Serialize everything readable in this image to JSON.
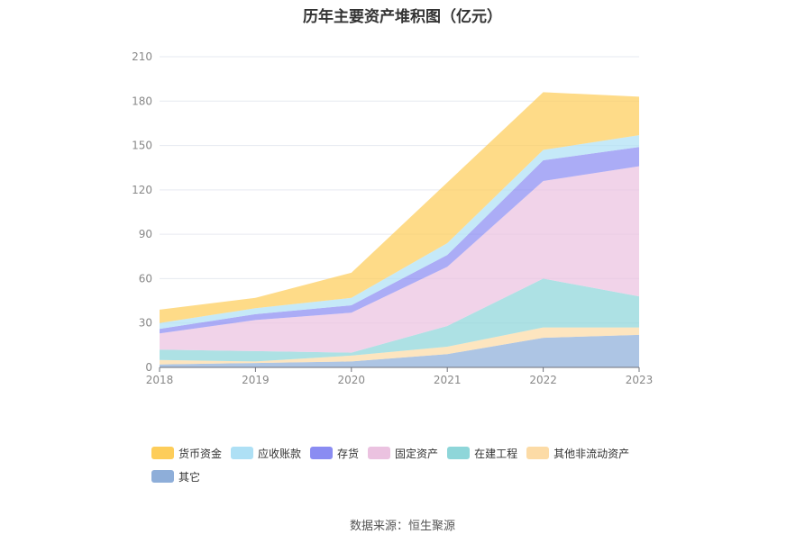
{
  "source": "数据来源：恒生聚源",
  "chart_data": {
    "type": "area",
    "stacked": true,
    "title": "历年主要资产堆积图（亿元）",
    "xlabel": "",
    "ylabel": "",
    "x": [
      "2018",
      "2019",
      "2020",
      "2021",
      "2022",
      "2023"
    ],
    "ylim": [
      0,
      210
    ],
    "yticks": [
      "0",
      "30",
      "60",
      "90",
      "120",
      "150",
      "180",
      "210"
    ],
    "grid": true,
    "legend_position": "bottom",
    "series": [
      {
        "name": "其它",
        "color": "#8eaed9",
        "values": [
          2,
          3,
          4,
          9,
          20,
          22
        ]
      },
      {
        "name": "其他非流动资产",
        "color": "#fcdba6",
        "values": [
          3,
          1,
          4,
          5,
          7,
          5
        ]
      },
      {
        "name": "在建工程",
        "color": "#8ed6d9",
        "values": [
          7,
          7,
          2,
          14,
          33,
          21
        ]
      },
      {
        "name": "固定资产",
        "color": "#ebc2e0",
        "values": [
          11,
          21,
          27,
          40,
          66,
          88
        ]
      },
      {
        "name": "存货",
        "color": "#8a8cf2",
        "values": [
          3,
          4,
          5,
          8,
          14,
          13
        ]
      },
      {
        "name": "应收账款",
        "color": "#aee0f5",
        "values": [
          4,
          4,
          5,
          8,
          7,
          8
        ]
      },
      {
        "name": "货币资金",
        "color": "#fdcd5a",
        "values": [
          9,
          7,
          17,
          41,
          39,
          26
        ]
      }
    ],
    "legend_order": [
      "货币资金",
      "应收账款",
      "存货",
      "固定资产",
      "在建工程",
      "其他非流动资产",
      "其它"
    ]
  }
}
